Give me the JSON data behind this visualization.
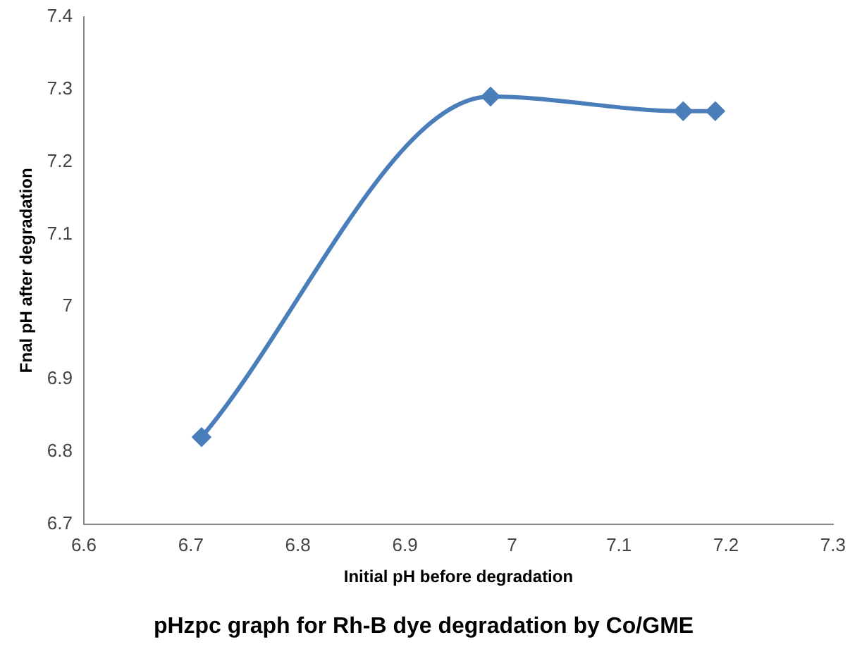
{
  "chart_data": {
    "type": "line",
    "title": "pHzpc graph for Rh-B dye degradation by Co/GME",
    "xlabel": "Initial pH before degradation",
    "ylabel": "Fnal pH after degradation",
    "x": [
      6.71,
      6.98,
      7.16,
      7.19
    ],
    "series": [
      {
        "color": "#4a7ebb",
        "values": [
          6.82,
          7.29,
          7.27,
          7.27
        ]
      }
    ],
    "xlim": [
      6.6,
      7.3
    ],
    "xticks": [
      6.6,
      6.7,
      6.8,
      6.9,
      7,
      7.1,
      7.2,
      7.3
    ],
    "ylim": [
      6.7,
      7.4
    ],
    "yticks": [
      6.7,
      6.8,
      6.9,
      7,
      7.1,
      7.2,
      7.3,
      7.4
    ],
    "grid": false,
    "legend": false,
    "marker": "diamond",
    "line_style": "solid"
  }
}
